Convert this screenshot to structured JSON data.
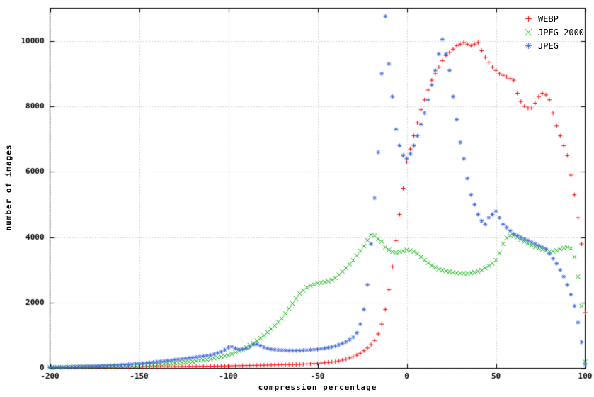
{
  "chart_data": {
    "type": "scatter",
    "title": "",
    "xlabel": "compression percentage",
    "ylabel": "number of images",
    "xlim": [
      -200,
      100
    ],
    "ylim": [
      0,
      11000
    ],
    "xticks": [
      -200,
      -150,
      -100,
      -50,
      0,
      50,
      100
    ],
    "yticks": [
      0,
      2000,
      4000,
      6000,
      8000,
      10000
    ],
    "grid": true,
    "grid_style": "dotted",
    "legend_position": "top-right-inside",
    "background_color": "#ffffff",
    "border_color": "#000000",
    "grid_color": "#b0b0b0",
    "x": [
      -200,
      -198,
      -196,
      -194,
      -192,
      -190,
      -188,
      -186,
      -184,
      -182,
      -180,
      -178,
      -176,
      -174,
      -172,
      -170,
      -168,
      -166,
      -164,
      -162,
      -160,
      -158,
      -156,
      -154,
      -152,
      -150,
      -148,
      -146,
      -144,
      -142,
      -140,
      -138,
      -136,
      -134,
      -132,
      -130,
      -128,
      -126,
      -124,
      -122,
      -120,
      -118,
      -116,
      -114,
      -112,
      -110,
      -108,
      -106,
      -104,
      -102,
      -100,
      -98,
      -96,
      -94,
      -92,
      -90,
      -88,
      -86,
      -84,
      -82,
      -80,
      -78,
      -76,
      -74,
      -72,
      -70,
      -68,
      -66,
      -64,
      -62,
      -60,
      -58,
      -56,
      -54,
      -52,
      -50,
      -48,
      -46,
      -44,
      -42,
      -40,
      -38,
      -36,
      -34,
      -32,
      -30,
      -28,
      -26,
      -24,
      -22,
      -20,
      -18,
      -16,
      -14,
      -12,
      -10,
      -8,
      -6,
      -4,
      -2,
      0,
      2,
      4,
      6,
      8,
      10,
      12,
      14,
      16,
      18,
      20,
      22,
      24,
      26,
      28,
      30,
      32,
      34,
      36,
      38,
      40,
      42,
      44,
      46,
      48,
      50,
      52,
      54,
      56,
      58,
      60,
      62,
      64,
      66,
      68,
      70,
      72,
      74,
      76,
      78,
      80,
      82,
      84,
      86,
      88,
      90,
      92,
      94,
      96,
      98,
      100
    ],
    "series": [
      {
        "name": "WEBP",
        "marker": "plus",
        "color": "#ff0000",
        "values": [
          20,
          20,
          22,
          22,
          24,
          25,
          25,
          26,
          28,
          28,
          30,
          30,
          31,
          32,
          33,
          34,
          34,
          35,
          36,
          37,
          38,
          38,
          39,
          40,
          40,
          41,
          42,
          43,
          44,
          45,
          46,
          47,
          48,
          49,
          50,
          51,
          52,
          53,
          55,
          57,
          58,
          60,
          61,
          62,
          63,
          65,
          66,
          68,
          70,
          72,
          74,
          76,
          78,
          80,
          82,
          85,
          87,
          89,
          91,
          93,
          95,
          98,
          100,
          103,
          106,
          109,
          112,
          114,
          116,
          118,
          120,
          126,
          132,
          138,
          144,
          150,
          160,
          170,
          180,
          190,
          200,
          225,
          250,
          280,
          315,
          350,
          400,
          460,
          535,
          620,
          720,
          850,
          1050,
          1350,
          1800,
          2400,
          3100,
          3900,
          4700,
          5500,
          6300,
          6700,
          7100,
          7500,
          7900,
          8200,
          8500,
          8800,
          9000,
          9200,
          9400,
          9550,
          9650,
          9750,
          9850,
          9900,
          9950,
          9900,
          9850,
          9900,
          9950,
          9700,
          9500,
          9350,
          9200,
          9100,
          9000,
          8950,
          8900,
          8850,
          8800,
          8400,
          8150,
          8000,
          7950,
          7950,
          8100,
          8300,
          8400,
          8350,
          8200,
          7800,
          7400,
          7100,
          6800,
          6500,
          5900,
          5300,
          4600,
          3800,
          1700
        ]
      },
      {
        "name": "JPEG 2000",
        "marker": "cross",
        "color": "#00b000",
        "values": [
          25,
          27,
          29,
          31,
          33,
          35,
          37,
          39,
          41,
          43,
          45,
          47,
          49,
          51,
          53,
          55,
          58,
          61,
          64,
          67,
          70,
          74,
          78,
          82,
          86,
          90,
          96,
          102,
          108,
          114,
          120,
          128,
          136,
          144,
          152,
          160,
          169,
          178,
          187,
          196,
          205,
          220,
          235,
          250,
          265,
          280,
          304,
          328,
          352,
          376,
          400,
          440,
          480,
          528,
          584,
          640,
          704,
          768,
          840,
          920,
          1000,
          1100,
          1200,
          1304,
          1412,
          1520,
          1672,
          1824,
          1976,
          2128,
          2280,
          2376,
          2472,
          2520,
          2560,
          2600,
          2610,
          2630,
          2655,
          2700,
          2760,
          2856,
          2952,
          3060,
          3180,
          3300,
          3444,
          3588,
          3732,
          3910,
          4080,
          4050,
          3950,
          3870,
          3700,
          3620,
          3560,
          3540,
          3560,
          3580,
          3620,
          3600,
          3560,
          3500,
          3400,
          3300,
          3220,
          3140,
          3080,
          3030,
          3000,
          2970,
          2950,
          2930,
          2910,
          2900,
          2900,
          2900,
          2910,
          2930,
          2960,
          3000,
          3060,
          3130,
          3200,
          3300,
          3520,
          3800,
          3980,
          4050,
          4060,
          4000,
          3930,
          3870,
          3810,
          3760,
          3710,
          3670,
          3630,
          3590,
          3560,
          3570,
          3600,
          3640,
          3680,
          3700,
          3660,
          3400,
          2800,
          1900,
          200
        ]
      },
      {
        "name": "JPEG",
        "marker": "asterisk",
        "color": "#4169e1",
        "values": [
          30,
          32,
          34,
          36,
          38,
          40,
          43,
          46,
          49,
          52,
          55,
          59,
          63,
          67,
          71,
          75,
          80,
          85,
          91,
          97,
          103,
          110,
          117,
          124,
          132,
          140,
          150,
          160,
          172,
          184,
          196,
          208,
          220,
          233,
          246,
          260,
          273,
          286,
          299,
          312,
          325,
          340,
          355,
          370,
          385,
          400,
          430,
          465,
          505,
          560,
          640,
          660,
          610,
          580,
          580,
          600,
          650,
          720,
          740,
          690,
          645,
          610,
          585,
          570,
          560,
          555,
          548,
          542,
          540,
          540,
          542,
          548,
          556,
          564,
          572,
          580,
          595,
          612,
          630,
          652,
          680,
          718,
          760,
          810,
          875,
          950,
          1080,
          1350,
          1800,
          2550,
          3800,
          5200,
          6600,
          9000,
          10750,
          9300,
          8300,
          7300,
          6800,
          6500,
          6400,
          6550,
          6800,
          7100,
          7450,
          7800,
          8200,
          8650,
          9100,
          9600,
          10050,
          9600,
          9100,
          8300,
          7600,
          6900,
          6400,
          5800,
          5300,
          5000,
          4700,
          4500,
          4400,
          4600,
          4700,
          4800,
          4600,
          4400,
          4300,
          4200,
          4100,
          4050,
          4000,
          3950,
          3900,
          3850,
          3800,
          3750,
          3700,
          3650,
          3500,
          3350,
          3200,
          3000,
          2800,
          2550,
          2250,
          1900,
          1400,
          800,
          120
        ]
      }
    ]
  }
}
